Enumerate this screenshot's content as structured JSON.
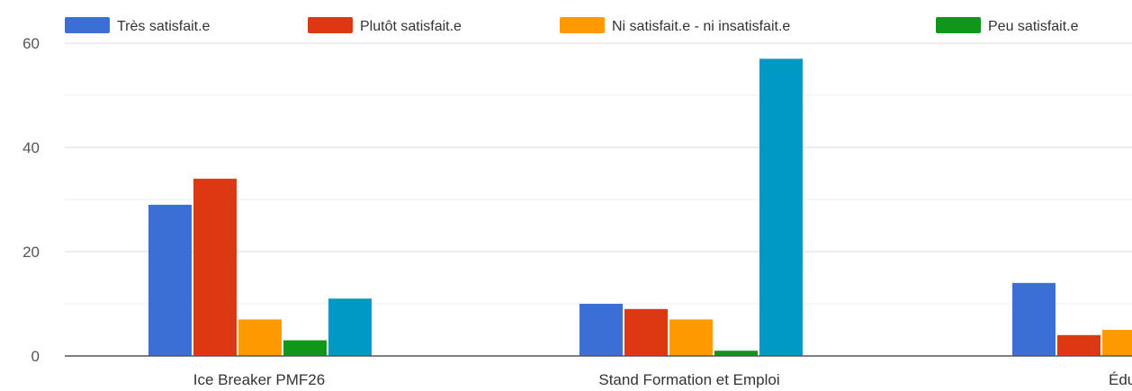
{
  "chart_data": {
    "type": "bar",
    "categories": [
      "Ice Breaker PMF26",
      "Stand Formation et Emploi",
      "Édu"
    ],
    "series": [
      {
        "name": "Très satisfait.e",
        "color": "#3c6fd6",
        "values": [
          29,
          10,
          14
        ]
      },
      {
        "name": "Plutôt satisfait.e",
        "color": "#dc3912",
        "values": [
          34,
          9,
          4
        ]
      },
      {
        "name": "Ni satisfait.e - ni insatisfait.e",
        "color": "#ff9900",
        "values": [
          7,
          7,
          5
        ]
      },
      {
        "name": "Peu satisfait.e",
        "color": "#109618",
        "values": [
          3,
          1,
          null
        ]
      },
      {
        "name": "",
        "color": "#0099c6",
        "values": [
          11,
          57,
          null
        ]
      }
    ],
    "yticks": [
      0,
      20,
      40,
      60
    ],
    "ylim": [
      0,
      60
    ],
    "grid": true,
    "legend_position": "top"
  }
}
